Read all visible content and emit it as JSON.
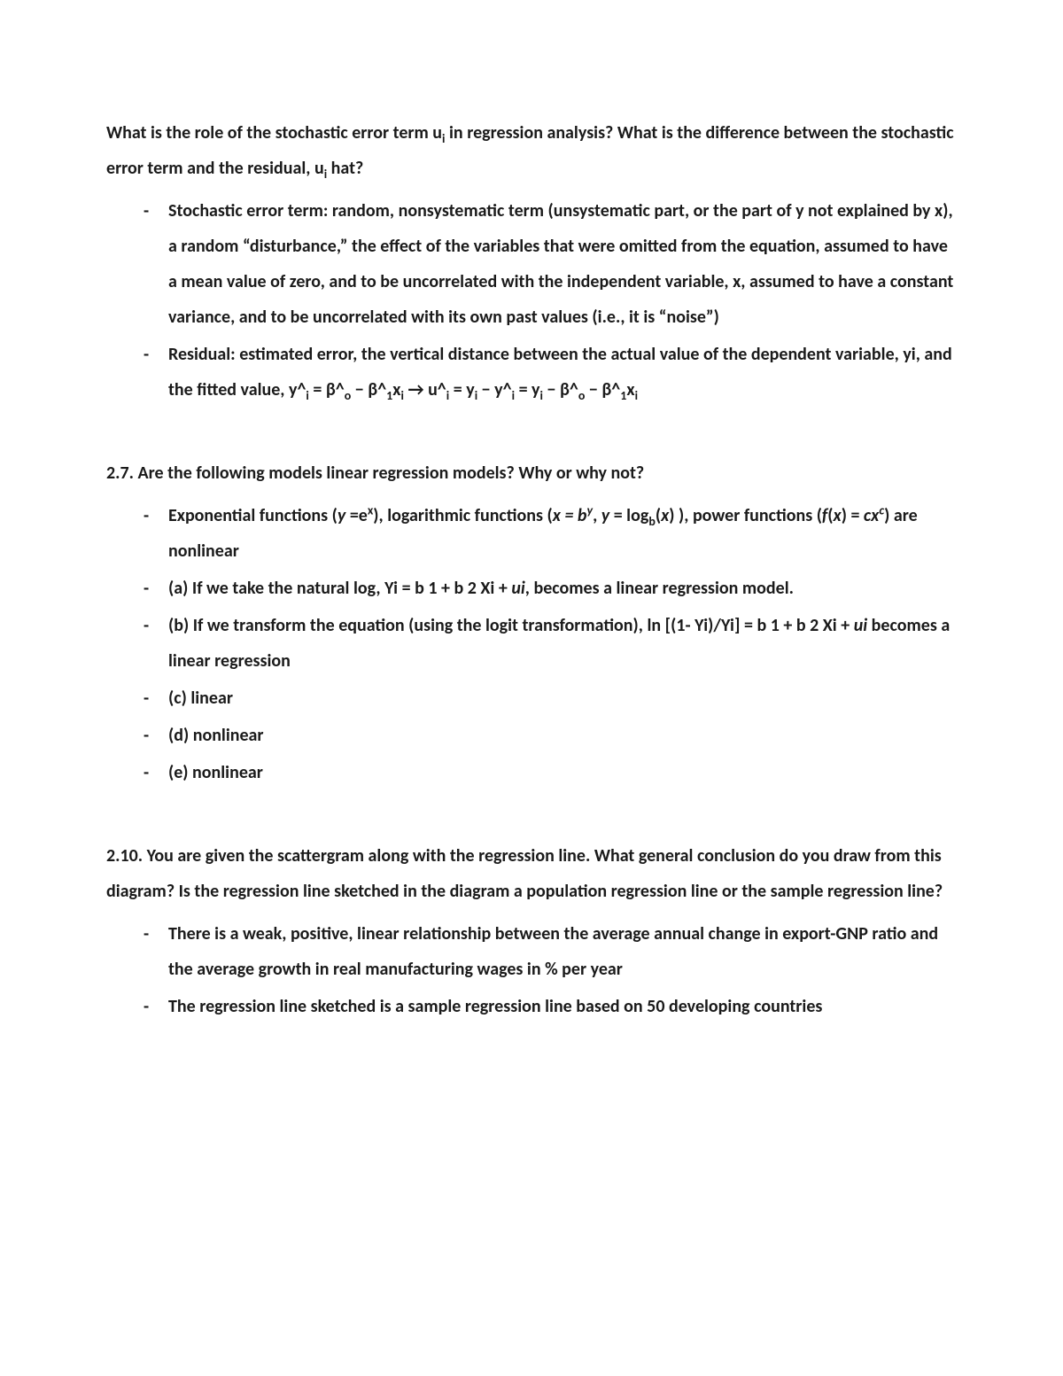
{
  "colors": {
    "text": "#1a1a1a",
    "background": "#ffffff"
  },
  "typography": {
    "font_family": "Calibri",
    "font_size_pt": 15,
    "font_weight": "600",
    "line_height": 2.0
  },
  "q1": {
    "prompt": "What is the role of the stochastic error term u<sub>i</sub> in regression analysis? What is the difference between the stochastic error term and the residual, u<sub>i</sub> hat?",
    "bullets": [
      "Stochastic error term: random, nonsystematic term (unsystematic part, or the part of y not explained by x), a random “disturbance,” the effect of the variables that were omitted from the equation, assumed to have a mean value of zero, and to be uncorrelated with the independent variable, x, assumed to have a constant variance, and to be uncorrelated with its own past values (i.e., it is “noise”)",
      "Residual: estimated error, the vertical distance between the actual value of the dependent variable, yi, and the fitted value, y^<sub>i</sub> = β^<sub>o</sub> − β^<sub>1</sub>x<sub>i</sub> → u^<sub>i</sub> = y<sub>i</sub> − y^<sub>i</sub> = y<sub>i</sub> − β^<sub>o</sub> − β^<sub>1</sub>x<sub>i</sub>"
    ]
  },
  "q2": {
    "prompt": "2.7. Are the following models linear regression models? Why or why not?",
    "bullets": [
      "Exponential functions (<span class=\"ital\">y</span> =e<sup>x</sup>), logarithmic functions (<span class=\"ital\">x = b<sup>y</sup></span>, <span class=\"ital\">y</span> = log<sub>b</sub>(<span class=\"ital\">x</span>) ), power functions (<span class=\"ital\">f</span>(<span class=\"ital\">x</span>) = <span class=\"ital\">cx<sup>c</sup></span>) are nonlinear",
      "(a) If we take the natural log, Yi = b 1 + b 2 Xi + <span class=\"ital\">ui</span>, becomes a linear regression model.",
      "(b) If we transform the equation (using the logit transformation), ln [(1- Yi)/Yi] = b 1 + b 2 Xi + <span class=\"ital\">ui</span>  becomes a linear regression",
      "(c) linear",
      "(d) nonlinear",
      "(e) nonlinear"
    ]
  },
  "q3": {
    "prompt": "2.10. You are given the scattergram along with the regression line. What general conclusion do you draw from this diagram? Is the regression line sketched in the diagram a population regression line or the sample regression line?",
    "bullets": [
      "There is a weak, positive, linear relationship between the average annual change in export-GNP ratio and the average growth in real manufacturing wages in % per year",
      "The regression line sketched is a sample regression line based on 50 developing countries"
    ]
  }
}
